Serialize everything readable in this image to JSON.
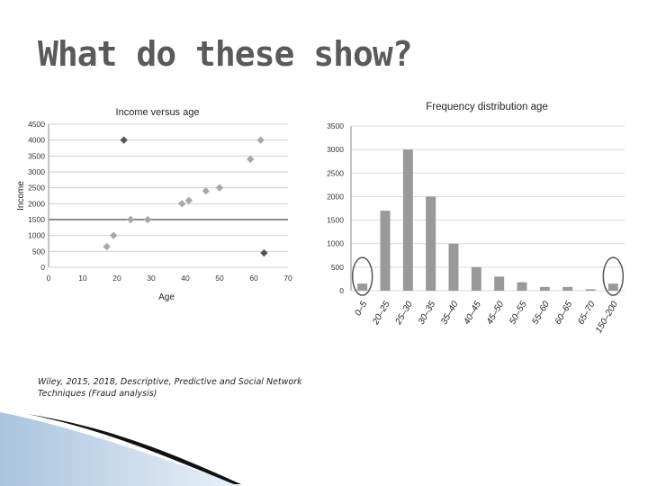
{
  "slide": {
    "title": "What do these show?",
    "citation": "Wiley, 2015, 2018, Descriptive, Predictive and Social Network Techniques (Fraud analysis)"
  },
  "chart_data": [
    {
      "type": "scatter",
      "title": "Income versus age",
      "xlabel": "Age",
      "ylabel": "Income",
      "xlim": [
        0,
        70
      ],
      "ylim": [
        0,
        4500
      ],
      "x_ticks": [
        "0",
        "10",
        "20",
        "30",
        "40",
        "50",
        "60",
        "70"
      ],
      "y_ticks": [
        "0",
        "500",
        "1000",
        "1500",
        "2000",
        "2500",
        "3000",
        "3500",
        "4000",
        "4500"
      ],
      "grid": "horizontal",
      "reference_line": 1500,
      "points": [
        {
          "x": 17,
          "y": 650,
          "kind": "normal"
        },
        {
          "x": 19,
          "y": 1000,
          "kind": "normal"
        },
        {
          "x": 24,
          "y": 1500,
          "kind": "normal"
        },
        {
          "x": 29,
          "y": 1500,
          "kind": "normal"
        },
        {
          "x": 39,
          "y": 2000,
          "kind": "normal"
        },
        {
          "x": 41,
          "y": 2100,
          "kind": "normal"
        },
        {
          "x": 46,
          "y": 2400,
          "kind": "normal"
        },
        {
          "x": 50,
          "y": 2500,
          "kind": "normal"
        },
        {
          "x": 59,
          "y": 3400,
          "kind": "normal"
        },
        {
          "x": 62,
          "y": 4000,
          "kind": "normal"
        },
        {
          "x": 22,
          "y": 4000,
          "kind": "outlier"
        },
        {
          "x": 63,
          "y": 450,
          "kind": "outlier"
        }
      ],
      "colors": {
        "normal": "#a8a8a8",
        "outlier": "#555555",
        "grid": "#d0d0d0",
        "reference": "#666666"
      }
    },
    {
      "type": "bar",
      "title": "Frequency distribution age",
      "categories": [
        "0–5",
        "20–25",
        "25–30",
        "30–35",
        "35–40",
        "40–45",
        "45–50",
        "50–55",
        "55–60",
        "60–65",
        "65–70",
        "150–200"
      ],
      "values": [
        150,
        1700,
        3000,
        2000,
        1000,
        500,
        300,
        180,
        80,
        80,
        30,
        150
      ],
      "ylim": [
        0,
        3500
      ],
      "y_ticks": [
        "0",
        "500",
        "1000",
        "1500",
        "2000",
        "2500",
        "3000",
        "3500"
      ],
      "grid": "horizontal",
      "highlighted": [
        "0–5",
        "150–200"
      ],
      "colors": {
        "bar": "#999999",
        "grid": "#d9d9d9",
        "circle": "#555555"
      }
    }
  ]
}
